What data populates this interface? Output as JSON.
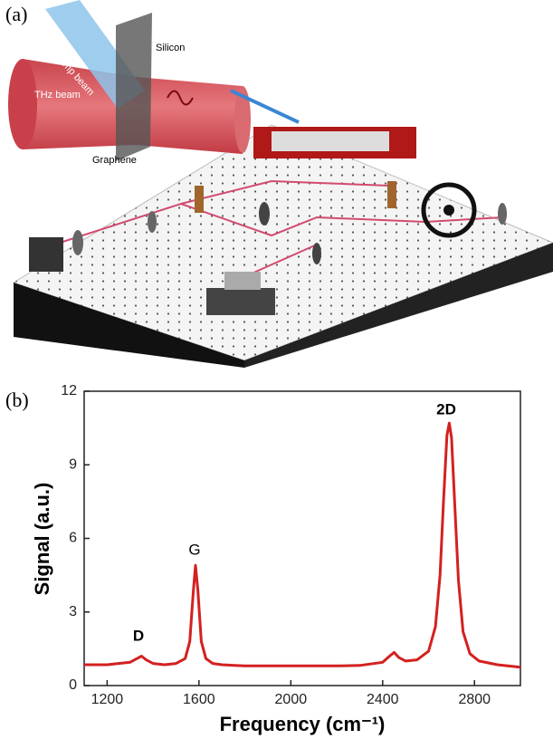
{
  "panel_a": {
    "label": "(a)",
    "texts": [
      "Pump beam",
      "Silicon",
      "THz beam",
      "Graphene"
    ]
  },
  "chart_data": {
    "type": "line",
    "panel_label": "(b)",
    "x_label": "Frequency (cm⁻¹)",
    "y_label": "Signal (a.u.)",
    "x": [
      1100,
      1150,
      1200,
      1250,
      1300,
      1330,
      1350,
      1370,
      1400,
      1450,
      1500,
      1540,
      1560,
      1575,
      1585,
      1595,
      1610,
      1630,
      1660,
      1700,
      1800,
      1900,
      2000,
      2100,
      2200,
      2300,
      2400,
      2430,
      2450,
      2470,
      2500,
      2550,
      2600,
      2630,
      2650,
      2665,
      2680,
      2690,
      2700,
      2715,
      2730,
      2750,
      2780,
      2820,
      2900,
      3000
    ],
    "values": [
      0.85,
      0.85,
      0.85,
      0.9,
      0.95,
      1.1,
      1.2,
      1.05,
      0.9,
      0.85,
      0.9,
      1.1,
      1.8,
      3.8,
      4.9,
      3.9,
      1.8,
      1.1,
      0.9,
      0.85,
      0.8,
      0.8,
      0.8,
      0.8,
      0.8,
      0.82,
      0.95,
      1.2,
      1.35,
      1.15,
      1.0,
      1.05,
      1.4,
      2.4,
      4.5,
      7.5,
      10.2,
      10.7,
      10.1,
      7.2,
      4.3,
      2.2,
      1.3,
      1.0,
      0.85,
      0.75
    ],
    "color": "#d42020",
    "xlim": [
      1100,
      3000
    ],
    "xticks": [
      1200,
      1600,
      2000,
      2400,
      2800
    ],
    "ylim": [
      0,
      12
    ],
    "yticks": [
      0,
      3,
      6,
      9,
      12
    ],
    "annotations": [
      "D",
      "G",
      "2D"
    ]
  }
}
